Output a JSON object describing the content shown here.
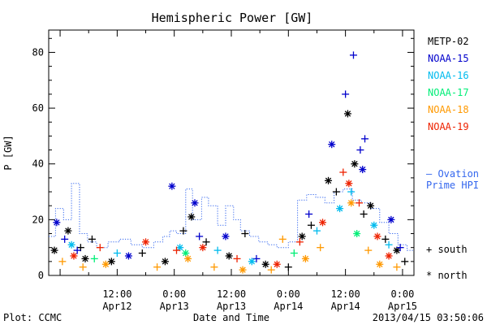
{
  "chart_data": {
    "type": "scatter",
    "title": "Hemispheric Power [GW]",
    "ylabel": "P [GW]",
    "xlabel": "Date and Time",
    "footer_left": "Plot: CCMC",
    "footer_right": "2013/04/15 03:50:06",
    "ylim": [
      0,
      88
    ],
    "xlim": [
      -0.1,
      3.1
    ],
    "x_unit": "days since 2013-04-12 00:00",
    "yticks": [
      0,
      20,
      40,
      60,
      80
    ],
    "xticks": [
      {
        "x": 0.5,
        "time": "12:00",
        "date": "Apr12"
      },
      {
        "x": 1.0,
        "time": "0:00",
        "date": "Apr13"
      },
      {
        "x": 1.5,
        "time": "12:00",
        "date": "Apr13"
      },
      {
        "x": 2.0,
        "time": "0:00",
        "date": "Apr14"
      },
      {
        "x": 2.5,
        "time": "12:00",
        "date": "Apr14"
      },
      {
        "x": 3.0,
        "time": "0:00",
        "date": "Apr15"
      }
    ],
    "series": [
      {
        "name": "METP-02",
        "color": "#000000",
        "points": [
          {
            "x": -0.05,
            "y": 9,
            "m": "star"
          },
          {
            "x": 0.07,
            "y": 16,
            "m": "star"
          },
          {
            "x": 0.18,
            "y": 10,
            "m": "plus"
          },
          {
            "x": 0.28,
            "y": 13,
            "m": "plus"
          },
          {
            "x": 0.22,
            "y": 6,
            "m": "star"
          },
          {
            "x": 0.45,
            "y": 5,
            "m": "star"
          },
          {
            "x": 0.72,
            "y": 8,
            "m": "plus"
          },
          {
            "x": 0.92,
            "y": 5,
            "m": "star"
          },
          {
            "x": 1.08,
            "y": 16,
            "m": "plus"
          },
          {
            "x": 1.15,
            "y": 21,
            "m": "star"
          },
          {
            "x": 1.28,
            "y": 12,
            "m": "plus"
          },
          {
            "x": 1.48,
            "y": 7,
            "m": "star"
          },
          {
            "x": 1.62,
            "y": 15,
            "m": "plus"
          },
          {
            "x": 1.8,
            "y": 4,
            "m": "star"
          },
          {
            "x": 2.0,
            "y": 3,
            "m": "plus"
          },
          {
            "x": 2.12,
            "y": 14,
            "m": "star"
          },
          {
            "x": 2.2,
            "y": 18,
            "m": "plus"
          },
          {
            "x": 2.35,
            "y": 34,
            "m": "star"
          },
          {
            "x": 2.42,
            "y": 30,
            "m": "plus"
          },
          {
            "x": 2.52,
            "y": 58,
            "m": "star"
          },
          {
            "x": 2.58,
            "y": 40,
            "m": "star"
          },
          {
            "x": 2.66,
            "y": 22,
            "m": "plus"
          },
          {
            "x": 2.72,
            "y": 25,
            "m": "star"
          },
          {
            "x": 2.85,
            "y": 13,
            "m": "plus"
          },
          {
            "x": 2.95,
            "y": 9,
            "m": "star"
          },
          {
            "x": 3.02,
            "y": 5,
            "m": "plus"
          }
        ]
      },
      {
        "name": "NOAA-15",
        "color": "#0000cc",
        "points": [
          {
            "x": -0.03,
            "y": 19,
            "m": "star"
          },
          {
            "x": 0.04,
            "y": 13,
            "m": "plus"
          },
          {
            "x": 0.15,
            "y": 9,
            "m": "plus"
          },
          {
            "x": 0.6,
            "y": 7,
            "m": "star"
          },
          {
            "x": 0.98,
            "y": 32,
            "m": "star"
          },
          {
            "x": 1.18,
            "y": 26,
            "m": "star"
          },
          {
            "x": 1.22,
            "y": 14,
            "m": "plus"
          },
          {
            "x": 1.45,
            "y": 14,
            "m": "star"
          },
          {
            "x": 1.72,
            "y": 6,
            "m": "plus"
          },
          {
            "x": 2.18,
            "y": 22,
            "m": "plus"
          },
          {
            "x": 2.38,
            "y": 47,
            "m": "star"
          },
          {
            "x": 2.5,
            "y": 65,
            "m": "plus"
          },
          {
            "x": 2.57,
            "y": 79,
            "m": "plus"
          },
          {
            "x": 2.63,
            "y": 45,
            "m": "plus"
          },
          {
            "x": 2.67,
            "y": 49,
            "m": "plus"
          },
          {
            "x": 2.65,
            "y": 38,
            "m": "star"
          },
          {
            "x": 2.9,
            "y": 20,
            "m": "star"
          },
          {
            "x": 2.98,
            "y": 10,
            "m": "plus"
          }
        ]
      },
      {
        "name": "NOAA-16",
        "color": "#00bbee",
        "points": [
          {
            "x": 0.1,
            "y": 11,
            "m": "star"
          },
          {
            "x": 0.5,
            "y": 8,
            "m": "plus"
          },
          {
            "x": 1.05,
            "y": 10,
            "m": "star"
          },
          {
            "x": 1.38,
            "y": 9,
            "m": "plus"
          },
          {
            "x": 1.68,
            "y": 5,
            "m": "star"
          },
          {
            "x": 2.25,
            "y": 16,
            "m": "plus"
          },
          {
            "x": 2.45,
            "y": 24,
            "m": "star"
          },
          {
            "x": 2.55,
            "y": 30,
            "m": "plus"
          },
          {
            "x": 2.75,
            "y": 18,
            "m": "star"
          },
          {
            "x": 2.88,
            "y": 11,
            "m": "plus"
          }
        ]
      },
      {
        "name": "NOAA-17",
        "color": "#00ee77",
        "points": [
          {
            "x": 0.3,
            "y": 6,
            "m": "plus"
          },
          {
            "x": 1.1,
            "y": 8,
            "m": "star"
          },
          {
            "x": 2.05,
            "y": 8,
            "m": "plus"
          },
          {
            "x": 2.6,
            "y": 15,
            "m": "star"
          }
        ]
      },
      {
        "name": "NOAA-18",
        "color": "#ff9900",
        "points": [
          {
            "x": 0.02,
            "y": 5,
            "m": "plus"
          },
          {
            "x": 0.2,
            "y": 3,
            "m": "plus"
          },
          {
            "x": 0.4,
            "y": 4,
            "m": "star"
          },
          {
            "x": 0.85,
            "y": 3,
            "m": "plus"
          },
          {
            "x": 1.12,
            "y": 6,
            "m": "star"
          },
          {
            "x": 1.35,
            "y": 3,
            "m": "plus"
          },
          {
            "x": 1.6,
            "y": 2,
            "m": "star"
          },
          {
            "x": 1.85,
            "y": 2,
            "m": "plus"
          },
          {
            "x": 1.95,
            "y": 13,
            "m": "plus"
          },
          {
            "x": 2.15,
            "y": 6,
            "m": "star"
          },
          {
            "x": 2.28,
            "y": 10,
            "m": "plus"
          },
          {
            "x": 2.55,
            "y": 26,
            "m": "star"
          },
          {
            "x": 2.7,
            "y": 9,
            "m": "plus"
          },
          {
            "x": 2.8,
            "y": 4,
            "m": "star"
          },
          {
            "x": 2.95,
            "y": 3,
            "m": "plus"
          }
        ]
      },
      {
        "name": "NOAA-19",
        "color": "#ee2200",
        "points": [
          {
            "x": 0.12,
            "y": 7,
            "m": "star"
          },
          {
            "x": 0.35,
            "y": 10,
            "m": "plus"
          },
          {
            "x": 0.75,
            "y": 12,
            "m": "star"
          },
          {
            "x": 1.02,
            "y": 9,
            "m": "plus"
          },
          {
            "x": 1.25,
            "y": 10,
            "m": "star"
          },
          {
            "x": 1.55,
            "y": 6,
            "m": "plus"
          },
          {
            "x": 1.9,
            "y": 4,
            "m": "star"
          },
          {
            "x": 2.1,
            "y": 12,
            "m": "plus"
          },
          {
            "x": 2.3,
            "y": 19,
            "m": "star"
          },
          {
            "x": 2.48,
            "y": 37,
            "m": "plus"
          },
          {
            "x": 2.53,
            "y": 33,
            "m": "star"
          },
          {
            "x": 2.62,
            "y": 26,
            "m": "plus"
          },
          {
            "x": 2.78,
            "y": 14,
            "m": "star"
          },
          {
            "x": 2.88,
            "y": 7,
            "m": "star"
          }
        ]
      }
    ],
    "ovation": {
      "name": "— Ovation Prime HPI",
      "label_line1": "– Ovation",
      "label_line2": "Prime HPI",
      "color": "#3366ee",
      "points": [
        {
          "x": -0.1,
          "y": 14
        },
        {
          "x": -0.04,
          "y": 24
        },
        {
          "x": 0.03,
          "y": 20
        },
        {
          "x": 0.1,
          "y": 33
        },
        {
          "x": 0.17,
          "y": 15
        },
        {
          "x": 0.24,
          "y": 12
        },
        {
          "x": 0.32,
          "y": 10
        },
        {
          "x": 0.42,
          "y": 12
        },
        {
          "x": 0.52,
          "y": 13
        },
        {
          "x": 0.62,
          "y": 11
        },
        {
          "x": 0.72,
          "y": 10
        },
        {
          "x": 0.82,
          "y": 12
        },
        {
          "x": 0.9,
          "y": 14
        },
        {
          "x": 0.96,
          "y": 16
        },
        {
          "x": 1.02,
          "y": 15
        },
        {
          "x": 1.1,
          "y": 31
        },
        {
          "x": 1.16,
          "y": 20
        },
        {
          "x": 1.24,
          "y": 28
        },
        {
          "x": 1.3,
          "y": 25
        },
        {
          "x": 1.38,
          "y": 18
        },
        {
          "x": 1.45,
          "y": 25
        },
        {
          "x": 1.52,
          "y": 20
        },
        {
          "x": 1.58,
          "y": 16
        },
        {
          "x": 1.66,
          "y": 14
        },
        {
          "x": 1.74,
          "y": 12
        },
        {
          "x": 1.82,
          "y": 11
        },
        {
          "x": 1.9,
          "y": 10
        },
        {
          "x": 2.0,
          "y": 12
        },
        {
          "x": 2.08,
          "y": 27
        },
        {
          "x": 2.16,
          "y": 29
        },
        {
          "x": 2.24,
          "y": 28
        },
        {
          "x": 2.32,
          "y": 26
        },
        {
          "x": 2.4,
          "y": 30
        },
        {
          "x": 2.48,
          "y": 31
        },
        {
          "x": 2.56,
          "y": 27
        },
        {
          "x": 2.64,
          "y": 26
        },
        {
          "x": 2.72,
          "y": 24
        },
        {
          "x": 2.8,
          "y": 19
        },
        {
          "x": 2.88,
          "y": 15
        },
        {
          "x": 2.96,
          "y": 11
        },
        {
          "x": 3.04,
          "y": 9
        },
        {
          "x": 3.1,
          "y": 9
        }
      ]
    },
    "symbol_legend": {
      "plus": "+ south",
      "star": "* north"
    },
    "grid": false,
    "legend_position": "right"
  }
}
